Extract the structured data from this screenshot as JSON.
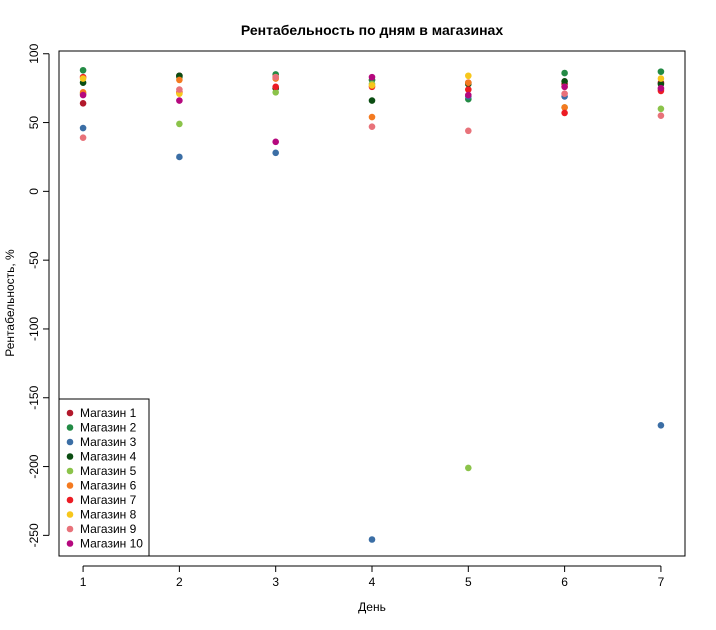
{
  "chart_data": {
    "type": "scatter",
    "title": "Рентабельность по дням в магазинах",
    "xlabel": "День",
    "ylabel": "Рентабельность, %",
    "x": [
      1,
      2,
      3,
      4,
      5,
      6,
      7
    ],
    "xlim": [
      0.75,
      7.25
    ],
    "ylim": [
      -265,
      102
    ],
    "x_ticks": [
      "1",
      "2",
      "3",
      "4",
      "5",
      "6",
      "7"
    ],
    "y_ticks": [
      "100",
      "50",
      "0",
      "-50",
      "-100",
      "-150",
      "-200",
      "-250"
    ],
    "grid": false,
    "legend_position": "bottom-left",
    "series": [
      {
        "name": "Магазин 1",
        "color": "#b2182b",
        "values": [
          64,
          84,
          75,
          81,
          79,
          78,
          79
        ]
      },
      {
        "name": "Магазин 2",
        "color": "#238b45",
        "values": [
          88,
          83,
          85,
          81,
          67,
          86,
          87
        ]
      },
      {
        "name": "Магазин 3",
        "color": "#3b6ea5",
        "values": [
          46,
          25,
          28,
          -253,
          69,
          69,
          -170
        ]
      },
      {
        "name": "Магазин 4",
        "color": "#0b4d12",
        "values": [
          79,
          84,
          75,
          66,
          78,
          80,
          78
        ]
      },
      {
        "name": "Магазин 5",
        "color": "#8bc34a",
        "values": [
          71,
          49,
          72,
          78,
          -201,
          61,
          60
        ]
      },
      {
        "name": "Магазин 6",
        "color": "#f47a20",
        "values": [
          72,
          81,
          82,
          54,
          79,
          61,
          74
        ]
      },
      {
        "name": "Магазин 7",
        "color": "#ec1c24",
        "values": [
          83,
          72,
          76,
          76,
          74,
          57,
          73
        ]
      },
      {
        "name": "Магазин 8",
        "color": "#f7c71c",
        "values": [
          82,
          71,
          83,
          77,
          84,
          76,
          82
        ]
      },
      {
        "name": "Магазин 9",
        "color": "#e8727a",
        "values": [
          39,
          74,
          83,
          47,
          44,
          71,
          55
        ]
      },
      {
        "name": "Магазин 10",
        "color": "#b5087e",
        "values": [
          70,
          66,
          36,
          83,
          70,
          76,
          75
        ]
      }
    ]
  }
}
